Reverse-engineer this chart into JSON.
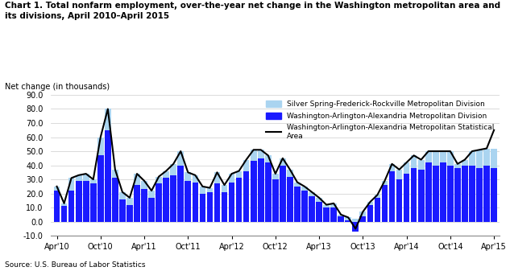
{
  "title_line1": "Chart 1. Total nonfarm employment, over-the-year net change in the Washington metropolitan area and",
  "title_line2": "its divisions, April 2010–April 2015",
  "ylabel": "Net change (in thousands)",
  "source": "Source: U.S. Bureau of Labor Statistics",
  "ylim": [
    -10,
    90
  ],
  "yticks": [
    -10.0,
    0.0,
    10.0,
    20.0,
    30.0,
    40.0,
    50.0,
    60.0,
    70.0,
    80.0,
    90.0
  ],
  "xtick_labels": [
    "Apr'10",
    "Oct'10",
    "Apr'11",
    "Oct'11",
    "Apr'12",
    "Oct'12",
    "Apr'13",
    "Oct'13",
    "Apr'14",
    "Oct'14",
    "Apr'15"
  ],
  "color_blue_dark": "#1a1aff",
  "color_blue_light": "#aad4f0",
  "color_line": "#000000",
  "legend_label_ss": "Silver Spring-Frederick-Rockville Metropolitan Division",
  "legend_label_wa": "Washington-Arlington-Alexandria Metropolitan Division",
  "legend_label_msa": "Washington-Arlington-Alexandria Metropolitan Statistical\nArea",
  "silver_spring": [
    3.0,
    2.0,
    9.0,
    4.0,
    5.0,
    3.0,
    13.0,
    15.0,
    6.0,
    5.0,
    5.0,
    8.0,
    6.0,
    5.0,
    5.0,
    5.0,
    8.0,
    10.0,
    6.0,
    5.0,
    5.0,
    3.0,
    8.0,
    5.0,
    6.0,
    5.0,
    8.0,
    8.0,
    6.0,
    5.0,
    4.0,
    5.0,
    5.0,
    3.0,
    3.0,
    3.0,
    3.0,
    2.0,
    3.0,
    1.0,
    2.0,
    2.0,
    3.0,
    2.0,
    2.0,
    3.0,
    5.0,
    7.0,
    8.0,
    9.0,
    7.0,
    8.0,
    10.0,
    8.0,
    10.0,
    3.0,
    4.0,
    10.0,
    13.0,
    12.0,
    14.0
  ],
  "washington_arlington": [
    22.0,
    11.0,
    22.0,
    29.0,
    29.0,
    27.0,
    47.0,
    65.0,
    31.0,
    16.0,
    12.0,
    26.0,
    23.0,
    17.0,
    27.0,
    31.0,
    33.0,
    40.0,
    29.0,
    28.0,
    20.0,
    21.0,
    27.0,
    21.0,
    28.0,
    31.0,
    36.0,
    43.0,
    45.0,
    42.0,
    30.0,
    40.0,
    32.0,
    25.0,
    22.0,
    18.0,
    14.0,
    10.0,
    10.0,
    4.0,
    1.0,
    -7.0,
    4.0,
    12.0,
    17.0,
    26.0,
    36.0,
    30.0,
    34.0,
    38.0,
    37.0,
    42.0,
    40.0,
    42.0,
    40.0,
    38.0,
    40.0,
    40.0,
    38.0,
    40.0,
    38.0
  ],
  "msa_total": [
    25.0,
    13.0,
    31.0,
    33.0,
    34.0,
    30.0,
    60.0,
    80.0,
    37.0,
    21.0,
    17.0,
    34.0,
    29.0,
    22.0,
    32.0,
    36.0,
    41.0,
    50.0,
    35.0,
    33.0,
    25.0,
    24.0,
    35.0,
    26.0,
    34.0,
    36.0,
    44.0,
    51.0,
    51.0,
    47.0,
    34.0,
    45.0,
    37.0,
    28.0,
    25.0,
    21.0,
    17.0,
    12.0,
    13.0,
    5.0,
    3.0,
    -5.0,
    7.0,
    14.0,
    19.0,
    29.0,
    41.0,
    37.0,
    42.0,
    47.0,
    44.0,
    50.0,
    50.0,
    50.0,
    50.0,
    41.0,
    44.0,
    50.0,
    51.0,
    52.0,
    65.0
  ]
}
